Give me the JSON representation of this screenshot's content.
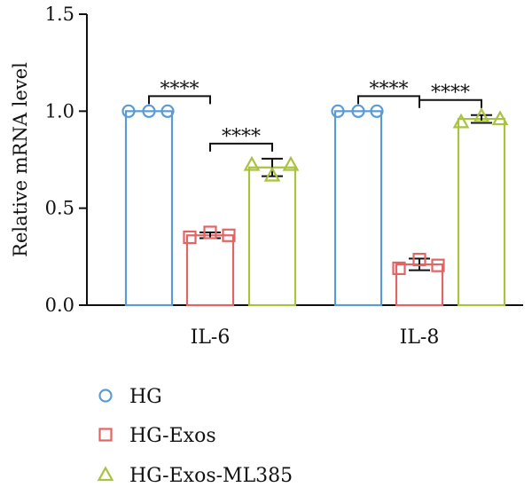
{
  "chart_data": {
    "type": "bar",
    "title": "",
    "xlabel": "",
    "ylabel": "Relative mRNA level",
    "ylim": [
      0,
      1.5
    ],
    "yticks": [
      "0.0",
      "0.5",
      "1.0",
      "1.5"
    ],
    "categories": [
      "IL-6",
      "IL-8"
    ],
    "grid": false,
    "legend_position": "bottom-left",
    "bar_style": "outlined",
    "series": [
      {
        "name": "HG",
        "color": "#5b9bd5",
        "marker": "circle",
        "values": [
          1.0,
          1.0
        ],
        "errors": [
          0,
          0
        ],
        "points": [
          [
            1.0,
            1.0,
            1.0
          ],
          [
            1.0,
            1.0,
            1.0
          ]
        ]
      },
      {
        "name": "HG-Exos",
        "color": "#e06666",
        "marker": "square",
        "values": [
          0.36,
          0.21
        ],
        "errors": [
          0.015,
          0.03
        ],
        "points": [
          [
            0.35,
            0.375,
            0.36
          ],
          [
            0.19,
            0.235,
            0.205
          ]
        ]
      },
      {
        "name": "HG-Exos-ML385",
        "color": "#a9c23f",
        "marker": "triangle",
        "values": [
          0.71,
          0.96
        ],
        "errors": [
          0.045,
          0.02
        ],
        "points": [
          [
            0.725,
            0.67,
            0.725
          ],
          [
            0.945,
            0.975,
            0.96
          ]
        ]
      }
    ],
    "significance": [
      {
        "category": 0,
        "from": 0,
        "to": 1,
        "label": "****"
      },
      {
        "category": 0,
        "from": 1,
        "to": 2,
        "label": "****"
      },
      {
        "category": 1,
        "from": 0,
        "to": 1,
        "label": "****"
      },
      {
        "category": 1,
        "from": 1,
        "to": 2,
        "label": "****"
      }
    ]
  }
}
